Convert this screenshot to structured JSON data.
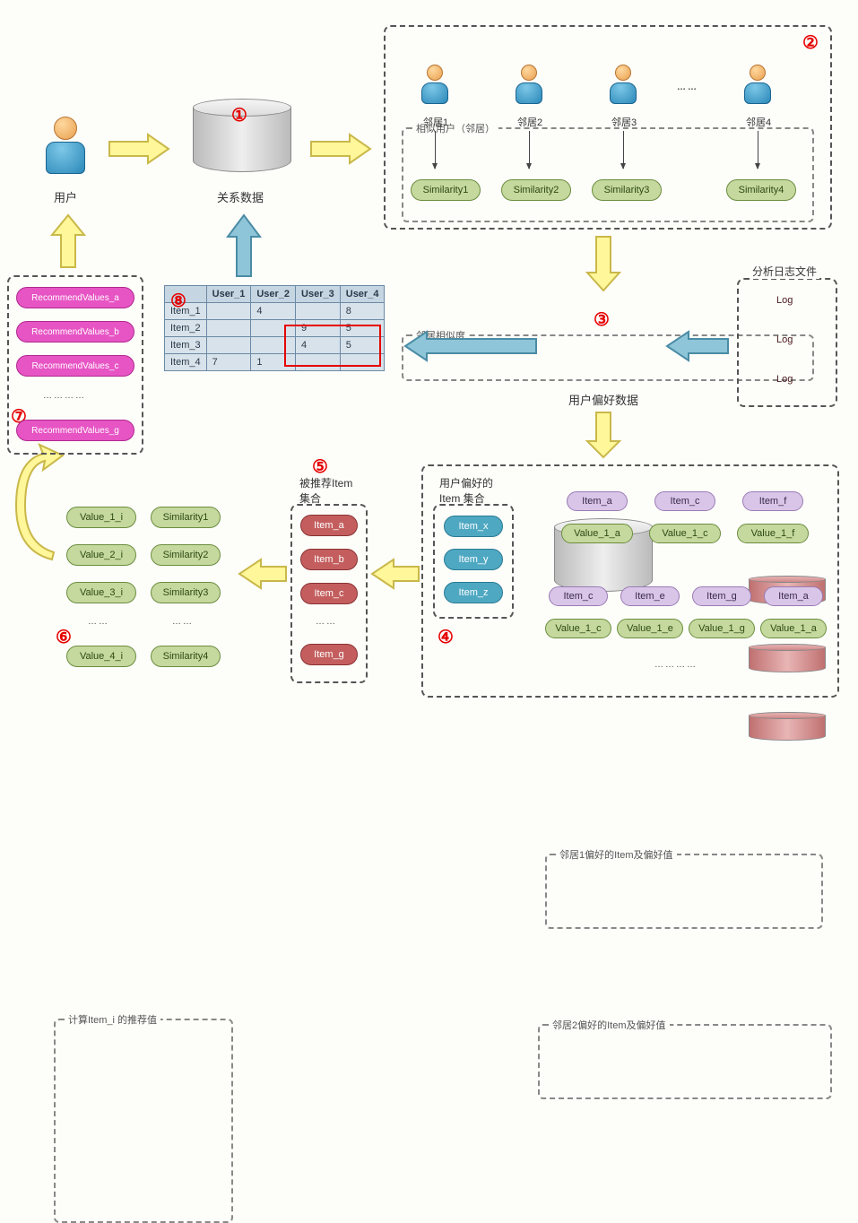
{
  "colors": {
    "bg": "#fdfdfa",
    "badge": "#e60000",
    "green": "#c5d89e",
    "purple": "#d9c5e8",
    "teal": "#4fa8c2",
    "red": "#c45e5e",
    "magenta": "#e754c4",
    "yellow_arrow": "#fff799",
    "blue_arrow": "#8fc5d8"
  },
  "labels": {
    "user": "用户",
    "relation_data": "关系数据",
    "user_pref_data": "用户偏好数据",
    "log_title": "分析日志文件",
    "step2_box": "相似用户（邻居）",
    "sim_box": "邻居相似度",
    "step5": "被推荐Item\n集合",
    "step4": "用户偏好的\nItem 集合",
    "neigh1_box": "邻居1偏好的Item及偏好值",
    "neigh2_box": "邻居2偏好的Item及偏好值",
    "step6": "计算Item_i 的推荐值",
    "dots": "……",
    "many_dots": "…………"
  },
  "badges": {
    "b1": "①",
    "b2": "②",
    "b3": "③",
    "b4": "④",
    "b5": "⑤",
    "b6": "⑥",
    "b7": "⑦",
    "b8": "⑧"
  },
  "neighbors": [
    "邻居1",
    "邻居2",
    "邻居3",
    "邻居4"
  ],
  "similarities": [
    "Similarity1",
    "Similarity2",
    "Similarity3",
    "Similarity4"
  ],
  "logs": [
    "Log",
    "Log",
    "Log"
  ],
  "table": {
    "cols": [
      "",
      "User_1",
      "User_2",
      "User_3",
      "User_4"
    ],
    "rows": [
      [
        "Item_1",
        "",
        "4",
        "",
        "8"
      ],
      [
        "Item_2",
        "",
        "",
        "9",
        "5"
      ],
      [
        "Item_3",
        "",
        "",
        "4",
        "5"
      ],
      [
        "Item_4",
        "7",
        "1",
        "",
        ""
      ]
    ]
  },
  "step7_items": [
    "RecommendValues_a",
    "RecommendValues_b",
    "RecommendValues_c",
    "RecommendValues_g"
  ],
  "step6_vals": [
    "Value_1_i",
    "Value_2_i",
    "Value_3_i",
    "Value_4_i"
  ],
  "step6_sims": [
    "Similarity1",
    "Similarity2",
    "Similarity3",
    "Similarity4"
  ],
  "step5_items": [
    "Item_a",
    "Item_b",
    "Item_c",
    "Item_g"
  ],
  "step4_items": [
    "Item_x",
    "Item_y",
    "Item_z"
  ],
  "neigh1_items": [
    "Item_a",
    "Item_c",
    "Item_f"
  ],
  "neigh1_vals": [
    "Value_1_a",
    "Value_1_c",
    "Value_1_f"
  ],
  "neigh2_items": [
    "Item_c",
    "Item_e",
    "Item_g",
    "Item_a"
  ],
  "neigh2_vals": [
    "Value_1_c",
    "Value_1_e",
    "Value_1_g",
    "Value_1_a"
  ]
}
